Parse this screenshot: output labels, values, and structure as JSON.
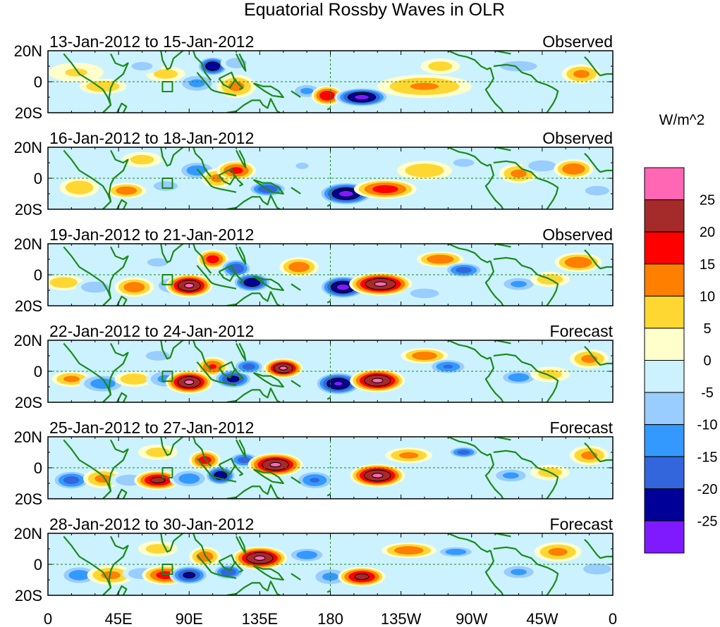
{
  "chart_data": {
    "type": "heatmap",
    "title": "Equatorial Rossby Waves in OLR",
    "units": "W/m^2",
    "x_ticks": [
      "0",
      "45E",
      "90E",
      "135E",
      "180",
      "135W",
      "90W",
      "45W",
      "0"
    ],
    "y_ticks": [
      "20N",
      "0",
      "20S"
    ],
    "xlim_deg_east": [
      0,
      360
    ],
    "ylim_deg": [
      -20,
      20
    ],
    "colorbar": {
      "labels": [
        "25",
        "20",
        "15",
        "10",
        "5",
        "0",
        "-5",
        "-10",
        "-15",
        "-20",
        "-25"
      ],
      "colors": [
        "#ff66b3",
        "#a52a2a",
        "#ff0000",
        "#ff7f00",
        "#ffd733",
        "#ffffcc",
        "#ccf2ff",
        "#99ccff",
        "#3399ff",
        "#3366dd",
        "#000099",
        "#7f1aff"
      ],
      "levels": [
        -25,
        -20,
        -15,
        -10,
        -5,
        0,
        5,
        10,
        15,
        20,
        25
      ]
    },
    "panels": [
      {
        "date": "13-Jan-2012 to 15-Jan-2012",
        "label": "Observed",
        "blobs": [
          [
            18,
            6,
            14,
            5,
            6
          ],
          [
            35,
            -3,
            12,
            4,
            10
          ],
          [
            75,
            5,
            10,
            4,
            8
          ],
          [
            95,
            -1,
            10,
            5,
            -12
          ],
          [
            105,
            10,
            8,
            5,
            -25
          ],
          [
            120,
            -3,
            10,
            6,
            12
          ],
          [
            155,
            2,
            10,
            4,
            -5
          ],
          [
            165,
            -6,
            8,
            4,
            -12
          ],
          [
            178,
            -9,
            8,
            5,
            20
          ],
          [
            200,
            -10,
            14,
            5,
            -27
          ],
          [
            240,
            -3,
            24,
            6,
            11
          ],
          [
            250,
            10,
            10,
            4,
            8
          ],
          [
            300,
            10,
            14,
            4,
            -9
          ],
          [
            340,
            5,
            10,
            5,
            12
          ],
          [
            60,
            10,
            10,
            4,
            -7
          ],
          [
            120,
            12,
            8,
            4,
            -9
          ]
        ]
      },
      {
        "date": "16-Jan-2012 to 18-Jan-2012",
        "label": "Observed",
        "blobs": [
          [
            20,
            -6,
            10,
            5,
            10
          ],
          [
            50,
            -8,
            10,
            4,
            14
          ],
          [
            75,
            -5,
            10,
            4,
            -8
          ],
          [
            95,
            5,
            10,
            5,
            -14
          ],
          [
            108,
            0,
            8,
            5,
            12
          ],
          [
            120,
            5,
            10,
            5,
            17
          ],
          [
            140,
            -7,
            10,
            4,
            -20
          ],
          [
            162,
            8,
            8,
            4,
            -6
          ],
          [
            190,
            -10,
            14,
            6,
            -27
          ],
          [
            215,
            -7,
            16,
            5,
            18
          ],
          [
            240,
            5,
            14,
            5,
            10
          ],
          [
            265,
            10,
            8,
            3,
            -9
          ],
          [
            300,
            3,
            10,
            5,
            12
          ],
          [
            315,
            8,
            10,
            4,
            -10
          ],
          [
            335,
            6,
            10,
            5,
            15
          ],
          [
            60,
            12,
            10,
            4,
            8
          ],
          [
            350,
            -8,
            10,
            4,
            -8
          ]
        ]
      },
      {
        "date": "19-Jan-2012 to 21-Jan-2012",
        "label": "Observed",
        "blobs": [
          [
            10,
            -5,
            10,
            4,
            10
          ],
          [
            30,
            -8,
            10,
            4,
            -10
          ],
          [
            55,
            -8,
            10,
            5,
            14
          ],
          [
            80,
            -7,
            10,
            5,
            -12
          ],
          [
            90,
            -7,
            12,
            6,
            26
          ],
          [
            105,
            10,
            8,
            5,
            18
          ],
          [
            120,
            4,
            8,
            5,
            -20
          ],
          [
            130,
            -5,
            10,
            5,
            -24
          ],
          [
            160,
            5,
            10,
            5,
            14
          ],
          [
            188,
            -8,
            12,
            6,
            -27
          ],
          [
            212,
            -6,
            16,
            6,
            26
          ],
          [
            250,
            10,
            12,
            4,
            15
          ],
          [
            265,
            3,
            10,
            4,
            -18
          ],
          [
            300,
            -6,
            10,
            4,
            -12
          ],
          [
            320,
            -3,
            10,
            4,
            9
          ],
          [
            338,
            8,
            12,
            5,
            15
          ],
          [
            70,
            8,
            10,
            4,
            -7
          ],
          [
            240,
            -12,
            12,
            4,
            -8
          ]
        ]
      },
      {
        "date": "22-Jan-2012 to 24-Jan-2012",
        "label": "Forecast",
        "blobs": [
          [
            15,
            -5,
            10,
            4,
            12
          ],
          [
            35,
            -8,
            12,
            5,
            -14
          ],
          [
            55,
            -5,
            10,
            4,
            10
          ],
          [
            75,
            -5,
            10,
            5,
            -12
          ],
          [
            90,
            -7,
            12,
            6,
            26
          ],
          [
            105,
            3,
            8,
            5,
            16
          ],
          [
            118,
            -5,
            10,
            5,
            -22
          ],
          [
            128,
            3,
            8,
            4,
            -18
          ],
          [
            150,
            2,
            10,
            5,
            26
          ],
          [
            185,
            -8,
            12,
            6,
            -26
          ],
          [
            210,
            -6,
            14,
            6,
            26
          ],
          [
            240,
            10,
            12,
            4,
            14
          ],
          [
            255,
            3,
            10,
            4,
            -16
          ],
          [
            300,
            -4,
            10,
            4,
            -14
          ],
          [
            320,
            -2,
            10,
            4,
            8
          ],
          [
            345,
            8,
            10,
            5,
            12
          ],
          [
            70,
            10,
            10,
            4,
            -8
          ]
        ]
      },
      {
        "date": "25-Jan-2012 to 27-Jan-2012",
        "label": "Forecast",
        "blobs": [
          [
            15,
            -8,
            10,
            5,
            -18
          ],
          [
            35,
            -7,
            10,
            5,
            12
          ],
          [
            52,
            -8,
            10,
            4,
            -10
          ],
          [
            70,
            -8,
            12,
            5,
            22
          ],
          [
            90,
            -7,
            10,
            5,
            -14
          ],
          [
            100,
            5,
            8,
            5,
            18
          ],
          [
            110,
            -5,
            8,
            5,
            -24
          ],
          [
            125,
            5,
            8,
            4,
            -18
          ],
          [
            145,
            2,
            14,
            6,
            26
          ],
          [
            170,
            -8,
            10,
            5,
            -16
          ],
          [
            210,
            -5,
            14,
            6,
            26
          ],
          [
            230,
            8,
            12,
            4,
            12
          ],
          [
            265,
            10,
            8,
            3,
            -18
          ],
          [
            295,
            -5,
            10,
            4,
            -12
          ],
          [
            320,
            -3,
            10,
            4,
            8
          ],
          [
            345,
            8,
            10,
            5,
            12
          ],
          [
            70,
            10,
            10,
            4,
            8
          ]
        ]
      },
      {
        "date": "28-Jan-2012 to 30-Jan-2012",
        "label": "Forecast",
        "blobs": [
          [
            20,
            -7,
            10,
            5,
            -14
          ],
          [
            40,
            -7,
            12,
            5,
            12
          ],
          [
            60,
            -6,
            10,
            4,
            -10
          ],
          [
            75,
            -7,
            12,
            5,
            18
          ],
          [
            90,
            -7,
            10,
            5,
            -22
          ],
          [
            100,
            5,
            8,
            5,
            14
          ],
          [
            115,
            -5,
            8,
            4,
            -20
          ],
          [
            135,
            4,
            14,
            6,
            26
          ],
          [
            165,
            6,
            10,
            4,
            -14
          ],
          [
            180,
            -8,
            10,
            5,
            -12
          ],
          [
            200,
            -8,
            12,
            5,
            22
          ],
          [
            230,
            9,
            14,
            4,
            14
          ],
          [
            260,
            8,
            10,
            3,
            -14
          ],
          [
            300,
            -5,
            10,
            4,
            -12
          ],
          [
            325,
            8,
            12,
            5,
            12
          ],
          [
            350,
            -3,
            10,
            4,
            -10
          ],
          [
            70,
            10,
            10,
            4,
            8
          ]
        ]
      }
    ]
  }
}
